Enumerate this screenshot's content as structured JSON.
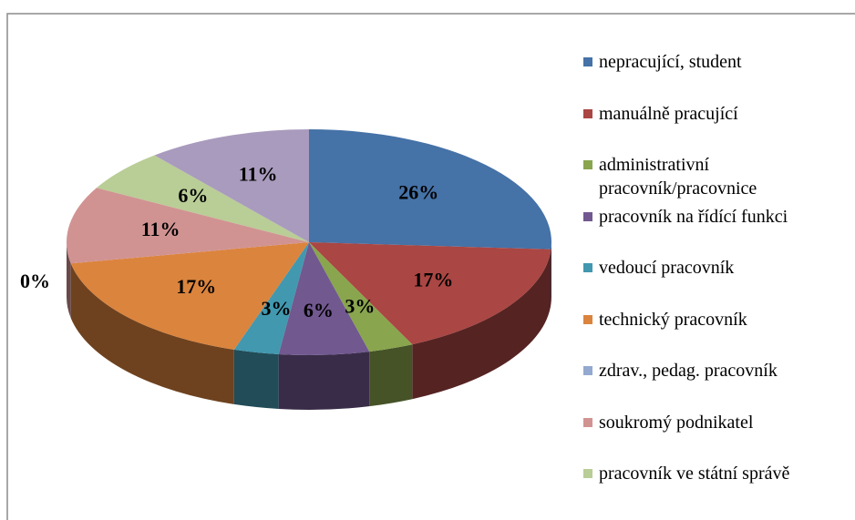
{
  "chart_data": {
    "type": "pie",
    "categories": [
      "nepracující, student",
      "manuálně pracující",
      "administrativní pracovník/pracovnice",
      "pracovník na řídící funkci",
      "vedoucí pracovník",
      "technický pracovník",
      "zdrav., pedag. pracovník",
      "soukromý podnikatel",
      "pracovník ve státní správě",
      null
    ],
    "values": [
      26,
      17,
      3,
      6,
      3,
      17,
      0,
      11,
      6,
      11
    ],
    "value_labels": [
      "26%",
      "17%",
      "3%",
      "6%",
      "3%",
      "17%",
      "0%",
      "11%",
      "6%",
      "11%"
    ],
    "colors": [
      "#4572a7",
      "#aa4643",
      "#89a54e",
      "#71588f",
      "#4198af",
      "#db843d",
      "#93a9cf",
      "#d19392",
      "#b9cd96",
      "#a99bbd"
    ],
    "legend": "right"
  }
}
